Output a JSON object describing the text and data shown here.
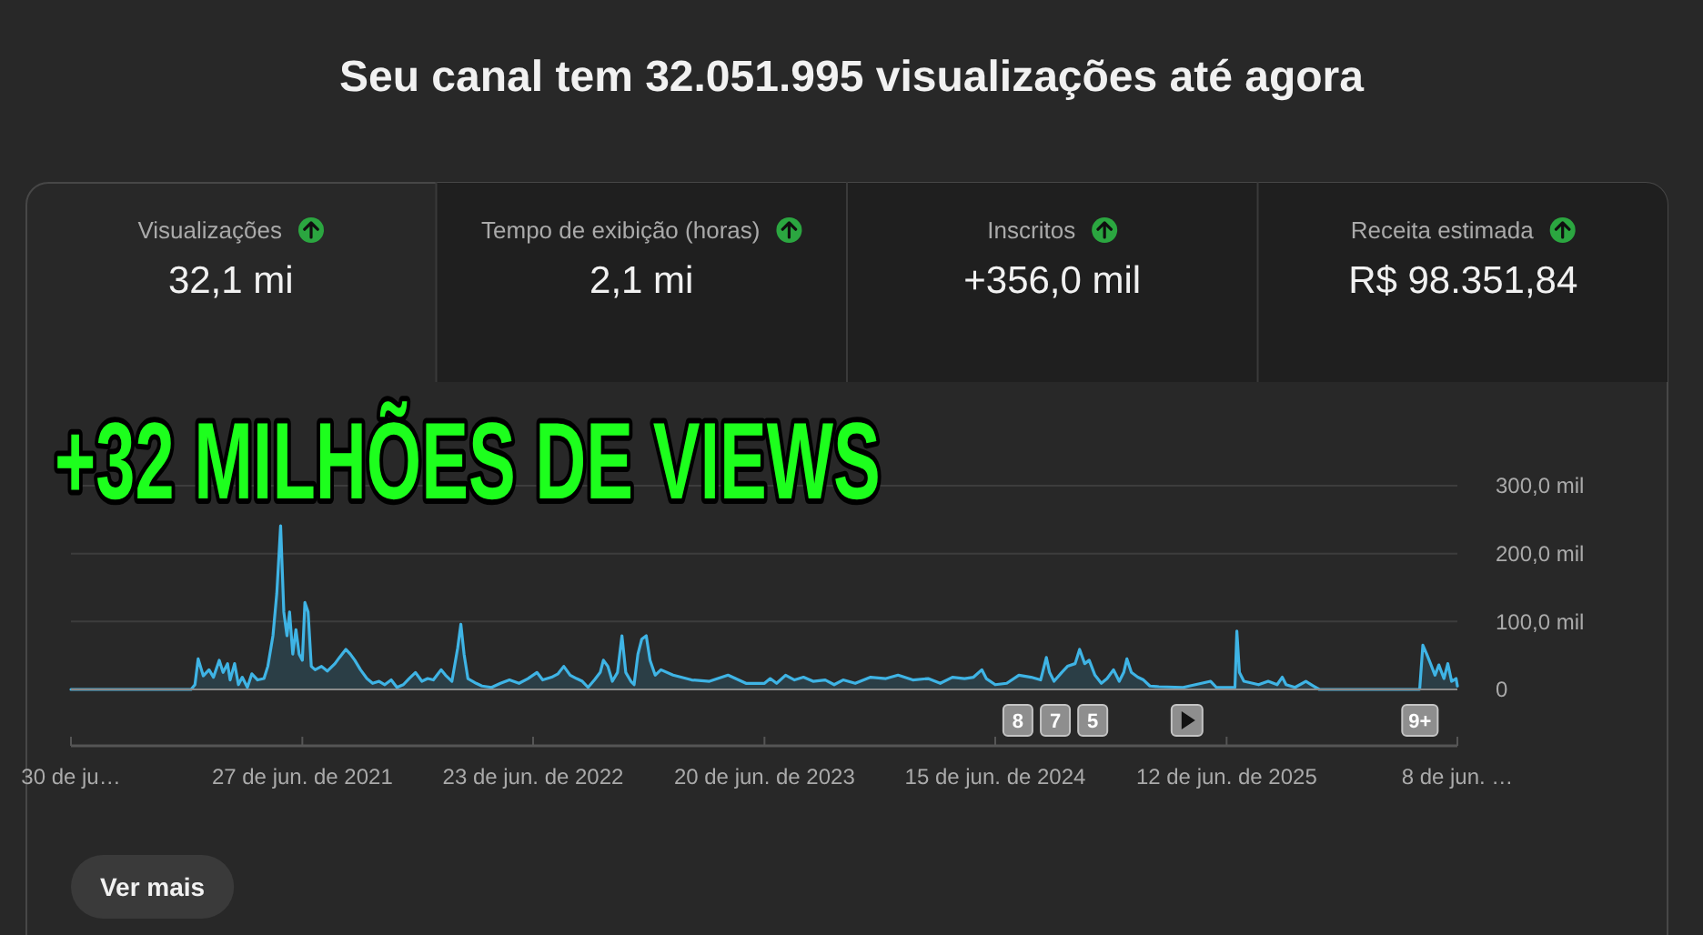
{
  "chart_data": [
    {
      "type": "other",
      "title": "Seu canal tem 32.051.995 visualizações até agora",
      "annotations": [
        "Visualizações",
        "32,1 mi",
        "Tempo de exibição (horas)",
        "2,1 mi",
        "Inscritos",
        "+356,0 mil",
        "Receita estimada",
        "R$ 98.351,84"
      ]
    },
    {
      "type": "area",
      "title": "+32 MILHÕES DE VIEWS",
      "color": "#3fb4e5",
      "x": [
        "2020-06-30",
        "2021-01-04",
        "2021-01-10",
        "2021-01-15",
        "2021-01-23",
        "2021-02-01",
        "2021-02-08",
        "2021-02-17",
        "2021-02-23",
        "2021-03-02",
        "2021-03-06",
        "2021-03-13",
        "2021-03-19",
        "2021-03-25",
        "2021-04-02",
        "2021-04-09",
        "2021-04-18",
        "2021-04-28",
        "2021-05-04",
        "2021-05-12",
        "2021-05-18",
        "2021-05-24",
        "2021-05-29",
        "2021-06-03",
        "2021-06-07",
        "2021-06-12",
        "2021-06-17",
        "2021-06-22",
        "2021-06-27",
        "2021-07-01",
        "2021-07-06",
        "2021-07-11",
        "2021-07-17",
        "2021-07-27",
        "2021-08-05",
        "2021-08-17",
        "2021-08-24",
        "2021-09-03",
        "2021-09-10",
        "2021-09-17",
        "2021-09-26",
        "2021-10-06",
        "2021-10-15",
        "2021-10-25",
        "2021-11-03",
        "2021-11-13",
        "2021-11-22",
        "2021-12-02",
        "2021-12-11",
        "2021-12-21",
        "2021-12-31",
        "2022-01-09",
        "2022-01-18",
        "2022-01-30",
        "2022-02-06",
        "2022-02-16",
        "2022-02-25",
        "2022-03-02",
        "2022-03-07",
        "2022-03-13",
        "2022-03-26",
        "2022-04-04",
        "2022-04-19",
        "2022-05-03",
        "2022-05-17",
        "2022-06-01",
        "2022-06-15",
        "2022-06-29",
        "2022-07-08",
        "2022-07-22",
        "2022-08-01",
        "2022-08-10",
        "2022-08-20",
        "2022-08-30",
        "2022-09-08",
        "2022-09-17",
        "2022-09-27",
        "2022-10-06",
        "2022-10-11",
        "2022-10-18",
        "2022-10-25",
        "2022-11-02",
        "2022-11-09",
        "2022-11-15",
        "2022-11-23",
        "2022-11-28",
        "2022-12-04",
        "2022-12-10",
        "2022-12-17",
        "2022-12-23",
        "2022-12-31",
        "2023-01-09",
        "2023-01-28",
        "2023-02-26",
        "2023-03-26",
        "2023-04-24",
        "2023-05-22",
        "2023-06-20",
        "2023-06-29",
        "2023-07-09",
        "2023-07-23",
        "2023-08-06",
        "2023-08-20",
        "2023-09-04",
        "2023-09-23",
        "2023-10-07",
        "2023-10-21",
        "2023-11-09",
        "2023-12-03",
        "2023-12-27",
        "2024-01-15",
        "2024-02-07",
        "2024-03-02",
        "2024-03-21",
        "2024-04-09",
        "2024-04-28",
        "2024-05-12",
        "2024-05-25",
        "2024-06-01",
        "2024-06-15",
        "2024-07-03",
        "2024-07-22",
        "2024-08-10",
        "2024-08-25",
        "2024-09-03",
        "2024-09-08",
        "2024-09-15",
        "2024-09-27",
        "2024-10-06",
        "2024-10-18",
        "2024-10-25",
        "2024-11-02",
        "2024-11-09",
        "2024-11-18",
        "2024-11-28",
        "2024-12-07",
        "2024-12-17",
        "2024-12-26",
        "2025-01-02",
        "2025-01-07",
        "2025-01-14",
        "2025-01-24",
        "2025-02-02",
        "2025-02-12",
        "2025-02-26",
        "2025-04-05",
        "2025-05-18",
        "2025-05-27",
        "2025-06-25",
        "2025-06-28",
        "2025-07-02",
        "2025-07-09",
        "2025-08-01",
        "2025-08-16",
        "2025-08-30",
        "2025-09-07",
        "2025-09-13",
        "2025-09-27",
        "2025-10-14",
        "2025-10-26",
        "2025-11-04",
        "2026-04-10",
        "2026-04-15",
        "2026-04-21",
        "2026-04-27",
        "2026-05-04",
        "2026-05-10",
        "2026-05-18",
        "2026-05-24",
        "2026-05-30",
        "2026-06-06",
        "2026-06-08"
      ],
      "values": [
        0,
        0,
        7,
        45,
        20,
        29,
        18,
        43,
        25,
        38,
        14,
        38,
        7,
        18,
        3,
        23,
        14,
        16,
        34,
        79,
        141,
        241,
        114,
        79,
        114,
        52,
        88,
        52,
        43,
        128,
        114,
        34,
        29,
        34,
        27,
        38,
        47,
        59,
        52,
        43,
        29,
        16,
        9,
        12,
        7,
        14,
        3,
        7,
        16,
        25,
        12,
        16,
        14,
        29,
        21,
        12,
        61,
        96,
        52,
        16,
        9,
        5,
        3,
        9,
        14,
        9,
        16,
        25,
        14,
        18,
        23,
        34,
        21,
        16,
        12,
        3,
        14,
        25,
        43,
        34,
        12,
        25,
        79,
        25,
        12,
        7,
        52,
        74,
        79,
        43,
        21,
        29,
        21,
        14,
        12,
        21,
        9,
        9,
        16,
        9,
        21,
        14,
        18,
        12,
        14,
        7,
        14,
        9,
        18,
        16,
        21,
        14,
        16,
        9,
        18,
        16,
        18,
        29,
        16,
        7,
        9,
        21,
        18,
        14,
        47,
        25,
        12,
        25,
        34,
        38,
        59,
        38,
        43,
        21,
        9,
        16,
        29,
        12,
        25,
        45,
        25,
        18,
        14,
        5,
        4,
        3,
        12,
        3,
        3,
        86,
        25,
        12,
        7,
        12,
        7,
        18,
        7,
        3,
        12,
        5,
        0,
        0,
        65,
        52,
        38,
        21,
        36,
        16,
        38,
        12,
        16,
        5
      ],
      "xlim": [
        "2020-06-30",
        "2026-06-08"
      ],
      "xticks": [
        {
          "value": "2020-06-30",
          "label": "30 de ju…"
        },
        {
          "value": "2021-06-27",
          "label": "27 de jun. de 2021"
        },
        {
          "value": "2022-06-23",
          "label": "23 de jun. de 2022"
        },
        {
          "value": "2023-06-20",
          "label": "20 de jun. de 2023"
        },
        {
          "value": "2024-06-15",
          "label": "15 de jun. de 2024"
        },
        {
          "value": "2025-06-12",
          "label": "12 de jun. de 2025"
        },
        {
          "value": "2026-06-08",
          "label": "8 de jun. …"
        }
      ],
      "ylim": [
        0,
        300
      ],
      "yticks": [
        0,
        {
          "value": 100,
          "label": "100,0 mil"
        },
        {
          "value": 200,
          "label": "200,0 mil"
        },
        {
          "value": 300,
          "label": "300,0 mil"
        }
      ],
      "grid": "y",
      "annotations": [
        "8",
        "7",
        "5",
        "9+",
        "Ver mais"
      ]
    }
  ]
}
